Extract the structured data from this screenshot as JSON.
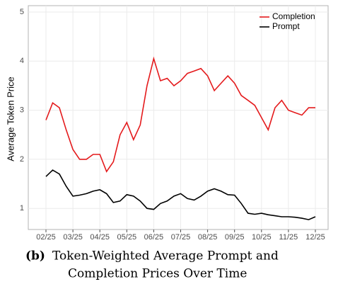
{
  "chart_data": {
    "type": "line",
    "ylabel": "Average Token Price",
    "caption_label": "(b)",
    "caption": [
      "Token-Weighted Average Prompt and",
      "Completion Prices Over Time"
    ],
    "categories": [
      "02/25",
      null,
      null,
      null,
      "03/25",
      null,
      null,
      null,
      "04/25",
      null,
      null,
      null,
      "05/25",
      null,
      null,
      null,
      "06/25",
      null,
      null,
      null,
      "07/25",
      null,
      null,
      null,
      "08/25",
      null,
      null,
      null,
      "09/25",
      null,
      null,
      null,
      "10/25",
      null,
      null,
      null,
      "11/25",
      null,
      null,
      null,
      "12/25"
    ],
    "series": [
      {
        "name": "Completion",
        "color": "#e41a1c",
        "values": [
          2.8,
          3.15,
          3.05,
          2.6,
          2.2,
          2.0,
          2.0,
          2.1,
          2.1,
          1.75,
          1.95,
          2.5,
          2.75,
          2.4,
          2.7,
          3.5,
          4.05,
          3.6,
          3.65,
          3.5,
          3.6,
          3.75,
          3.8,
          3.85,
          3.7,
          3.4,
          3.55,
          3.7,
          3.55,
          3.3,
          3.2,
          3.1,
          2.85,
          2.6,
          3.05,
          3.2,
          3.0,
          2.95,
          2.9,
          3.05,
          3.05
        ]
      },
      {
        "name": "Prompt",
        "color": "#000000",
        "values": [
          1.65,
          1.78,
          1.7,
          1.45,
          1.25,
          1.27,
          1.3,
          1.35,
          1.38,
          1.3,
          1.12,
          1.15,
          1.28,
          1.25,
          1.15,
          1.0,
          0.98,
          1.1,
          1.15,
          1.25,
          1.3,
          1.2,
          1.17,
          1.25,
          1.35,
          1.4,
          1.35,
          1.28,
          1.27,
          1.1,
          0.9,
          0.88,
          0.9,
          0.87,
          0.85,
          0.83,
          0.83,
          0.82,
          0.8,
          0.77,
          0.83
        ]
      }
    ],
    "ylim": [
      0.57,
      5.13
    ],
    "yticks": [
      1,
      2,
      3,
      4,
      5
    ],
    "grid": true,
    "legend": "top-right"
  }
}
